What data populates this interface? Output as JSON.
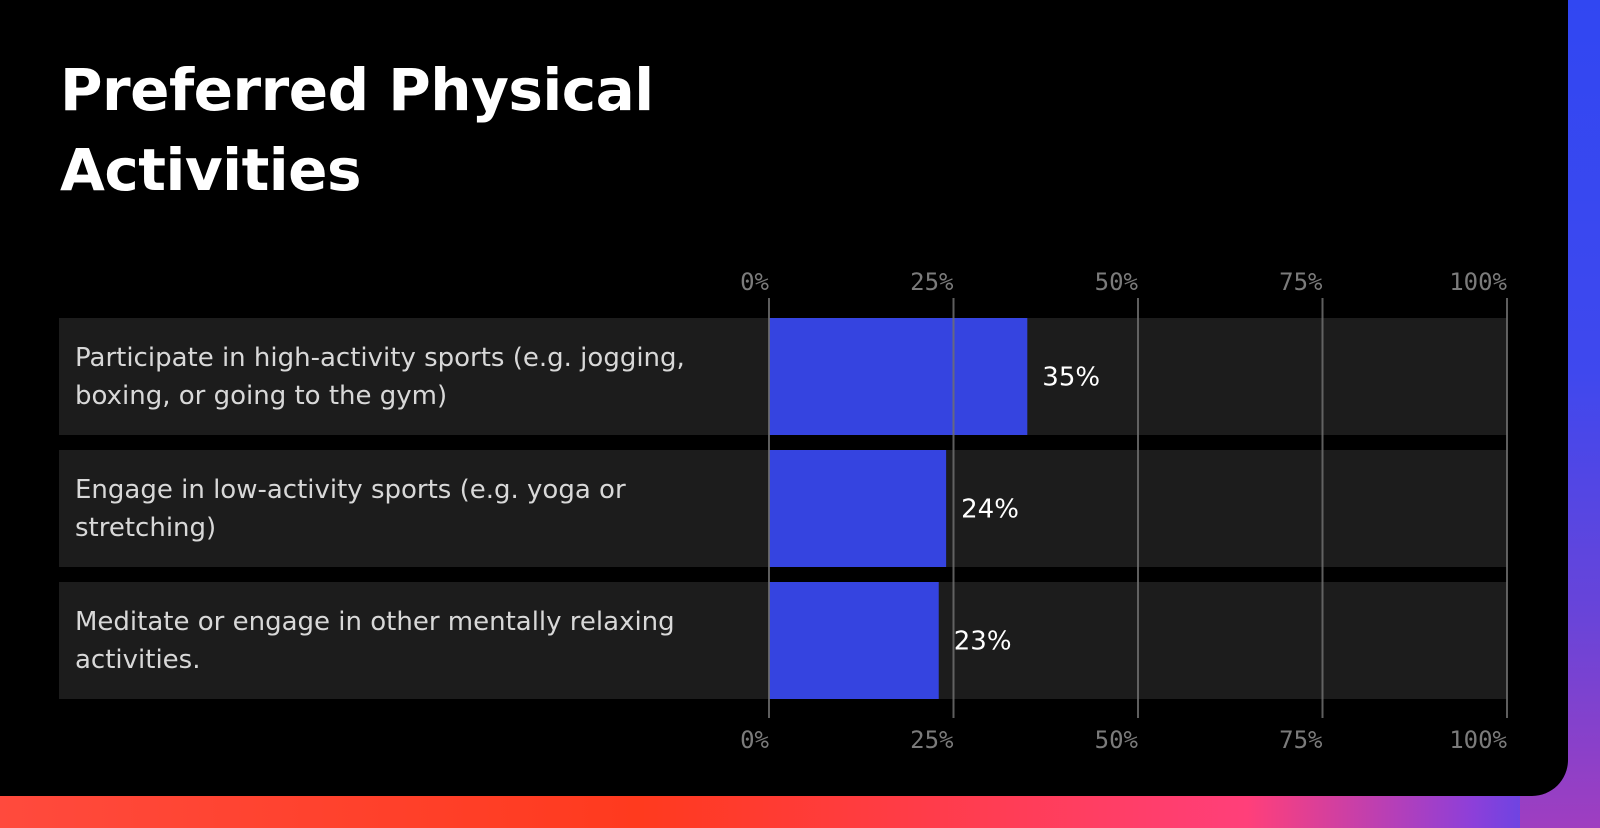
{
  "colors": {
    "bar": "#3544e0",
    "row_background": "#1c1c1c",
    "grid": "#6e6e6e",
    "background": "#000000"
  },
  "chart_data": {
    "type": "bar",
    "orientation": "horizontal",
    "title": "Preferred Physical Activities",
    "categories": [
      "Participate in high-activity sports (e.g. jogging, boxing, or going to the gym)",
      "Engage in low-activity sports (e.g. yoga or stretching)",
      "Meditate or engage in other mentally relaxing activities."
    ],
    "category_lines": [
      [
        "Participate in high-activity sports (e.g. jogging,",
        "boxing, or going to the gym)"
      ],
      [
        "Engage in low-activity sports (e.g. yoga or",
        "stretching)"
      ],
      [
        "Meditate or engage in other mentally relaxing",
        "activities."
      ]
    ],
    "values": [
      35,
      24,
      23
    ],
    "value_labels": [
      "35%",
      "24%",
      "23%"
    ],
    "xlim": [
      0,
      100
    ],
    "ticks": [
      0,
      25,
      50,
      75,
      100
    ],
    "tick_labels": [
      "0%",
      "25%",
      "50%",
      "75%",
      "100%"
    ],
    "grid": true,
    "axis_labels_position": "top-and-bottom"
  }
}
